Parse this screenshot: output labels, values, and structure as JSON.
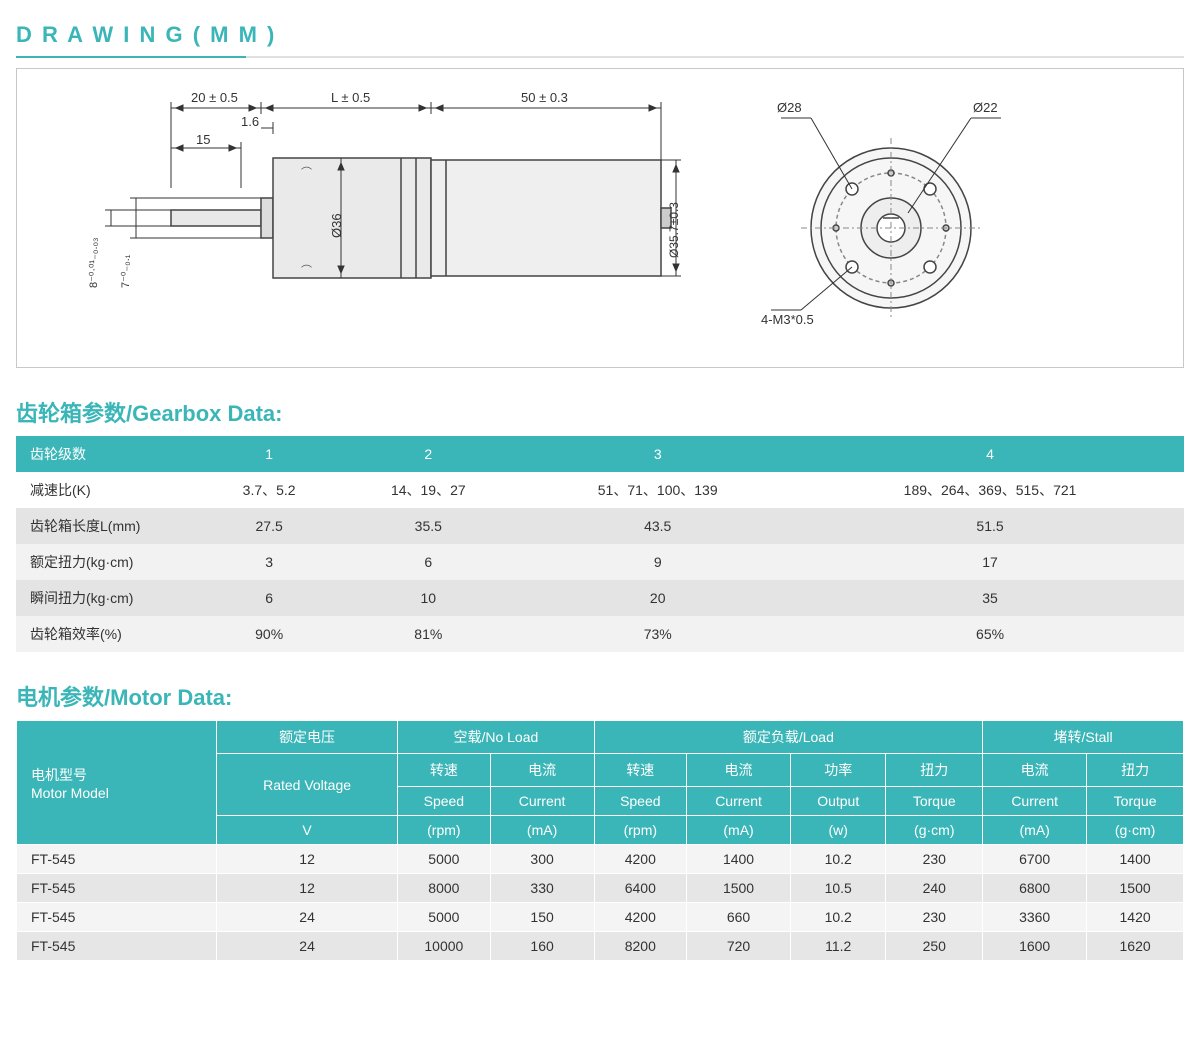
{
  "drawing": {
    "title": "D R A W I N G ( M M )",
    "dims": {
      "shaft_len": "20 ± 0.5",
      "gearbox_len": "L ± 0.5",
      "motor_len": "50 ± 0.3",
      "step": "1.6",
      "shaft_usable": "15",
      "shaft_d": "8⁻⁰·⁰¹₋₀.₀₃",
      "pilot_d": "7⁻⁰₋₀.₁",
      "gearbox_d": "Ø36",
      "motor_d": "Ø35.7±0.3",
      "bolt_circle": "Ø28",
      "pilot_circle": "Ø22",
      "holes": "4-M3*0.5"
    }
  },
  "gearbox": {
    "title": "齿轮箱参数/Gearbox Data:",
    "header_label": "齿轮级数",
    "stages": [
      "1",
      "2",
      "3",
      "4"
    ],
    "rows": [
      {
        "label": "减速比(K)",
        "vals": [
          "3.7、5.2",
          "14、19、27",
          "51、71、100、139",
          "189、264、369、515、721"
        ]
      },
      {
        "label": "齿轮箱长度L(mm)",
        "vals": [
          "27.5",
          "35.5",
          "43.5",
          "51.5"
        ]
      },
      {
        "label": "额定扭力(kg·cm)",
        "vals": [
          "3",
          "6",
          "9",
          "17"
        ]
      },
      {
        "label": "瞬间扭力(kg·cm)",
        "vals": [
          "6",
          "10",
          "20",
          "35"
        ]
      },
      {
        "label": "齿轮箱效率(%)",
        "vals": [
          "90%",
          "81%",
          "73%",
          "65%"
        ]
      }
    ]
  },
  "motor": {
    "title": "电机参数/Motor Data:",
    "header": {
      "model": "电机型号\nMotor Model",
      "voltage_top": "额定电压",
      "voltage_mid": "Rated Voltage",
      "voltage_unit": "V",
      "noload": "空载/No Load",
      "load": "额定负载/Load",
      "stall": "堵转/Stall",
      "speed_cn": "转速",
      "speed_en": "Speed",
      "speed_u": "(rpm)",
      "current_cn": "电流",
      "current_en": "Current",
      "current_u": "(mA)",
      "output_cn": "功率",
      "output_en": "Output",
      "output_u": "(w)",
      "torque_cn": "扭力",
      "torque_en": "Torque",
      "torque_u": "(g·cm)"
    },
    "rows": [
      {
        "model": "FT-545",
        "v": "12",
        "nl_s": "5000",
        "nl_c": "300",
        "l_s": "4200",
        "l_c": "1400",
        "l_p": "10.2",
        "l_t": "230",
        "s_c": "6700",
        "s_t": "1400"
      },
      {
        "model": "FT-545",
        "v": "12",
        "nl_s": "8000",
        "nl_c": "330",
        "l_s": "6400",
        "l_c": "1500",
        "l_p": "10.5",
        "l_t": "240",
        "s_c": "6800",
        "s_t": "1500"
      },
      {
        "model": "FT-545",
        "v": "24",
        "nl_s": "5000",
        "nl_c": "150",
        "l_s": "4200",
        "l_c": "660",
        "l_p": "10.2",
        "l_t": "230",
        "s_c": "3360",
        "s_t": "1420"
      },
      {
        "model": "FT-545",
        "v": "24",
        "nl_s": "10000",
        "nl_c": "160",
        "l_s": "8200",
        "l_c": "720",
        "l_p": "11.2",
        "l_t": "250",
        "s_c": "1600",
        "s_t": "1620"
      }
    ]
  },
  "colors": {
    "accent": "#3bb6b8"
  }
}
